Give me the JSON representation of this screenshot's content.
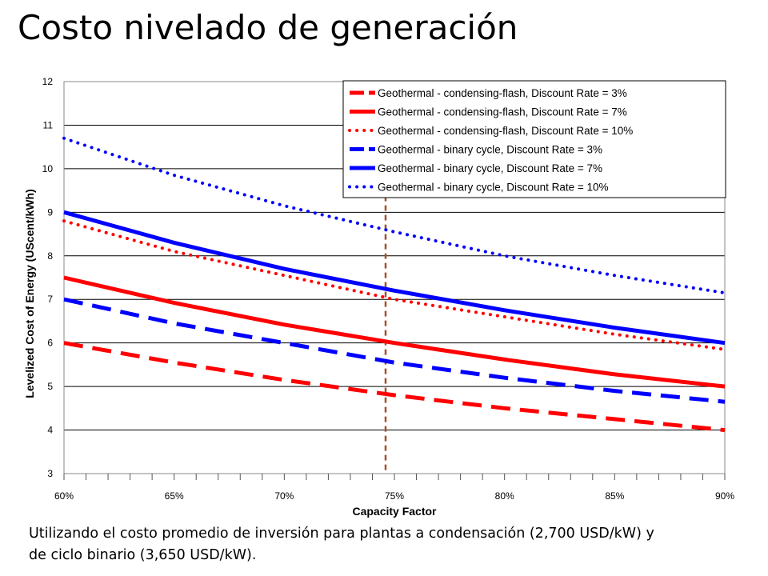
{
  "slide": {
    "title": "Costo nivelado de generación",
    "caption_line1": "Utilizando el costo promedio de inversión para plantas a condensación (2,700 USD/kW) y",
    "caption_line2": "de ciclo binario (3,650 USD/kW)."
  },
  "chart_data": {
    "type": "line",
    "title": "",
    "xlabel": "Capacity Factor",
    "ylabel": "Levelized Cost of Energy (UScent/kWh)",
    "xlim": [
      0.6,
      0.9
    ],
    "ylim": [
      3,
      12
    ],
    "x_ticks": [
      "60%",
      "65%",
      "70%",
      "75%",
      "80%",
      "85%",
      "90%"
    ],
    "y_ticks": [
      "3",
      "4",
      "5",
      "6",
      "7",
      "8",
      "9",
      "10",
      "11",
      "12"
    ],
    "grid": "horizontal",
    "legend_position": "top-right",
    "reference_line": {
      "x": 0.746,
      "color": "#a0522d",
      "style": "dashed"
    },
    "series": [
      {
        "name": "Geothermal - condensing-flash, Discount Rate = 3%",
        "color": "#ff0000",
        "style": "dashed",
        "x": [
          0.6,
          0.65,
          0.7,
          0.75,
          0.8,
          0.85,
          0.9
        ],
        "y": [
          6.0,
          5.55,
          5.15,
          4.8,
          4.5,
          4.25,
          4.0
        ]
      },
      {
        "name": "Geothermal - condensing-flash, Discount Rate = 7%",
        "color": "#ff0000",
        "style": "solid",
        "x": [
          0.6,
          0.65,
          0.7,
          0.75,
          0.8,
          0.85,
          0.9
        ],
        "y": [
          7.5,
          6.92,
          6.42,
          6.0,
          5.62,
          5.28,
          5.0
        ]
      },
      {
        "name": "Geothermal - condensing-flash, Discount Rate = 10%",
        "color": "#ff0000",
        "style": "dotted",
        "x": [
          0.6,
          0.65,
          0.7,
          0.75,
          0.8,
          0.85,
          0.9
        ],
        "y": [
          8.8,
          8.1,
          7.55,
          7.0,
          6.6,
          6.2,
          5.85
        ]
      },
      {
        "name": "Geothermal - binary cycle, Discount Rate = 3%",
        "color": "#0000ff",
        "style": "dashed",
        "x": [
          0.6,
          0.65,
          0.7,
          0.75,
          0.8,
          0.85,
          0.9
        ],
        "y": [
          7.0,
          6.45,
          6.0,
          5.55,
          5.2,
          4.9,
          4.65
        ]
      },
      {
        "name": "Geothermal - binary cycle, Discount Rate = 7%",
        "color": "#0000ff",
        "style": "solid",
        "x": [
          0.6,
          0.65,
          0.7,
          0.75,
          0.8,
          0.85,
          0.9
        ],
        "y": [
          9.0,
          8.3,
          7.7,
          7.2,
          6.75,
          6.35,
          6.0
        ]
      },
      {
        "name": "Geothermal - binary cycle, Discount Rate = 10%",
        "color": "#0000ff",
        "style": "dotted",
        "x": [
          0.6,
          0.65,
          0.7,
          0.75,
          0.8,
          0.85,
          0.9
        ],
        "y": [
          10.7,
          9.85,
          9.15,
          8.55,
          8.0,
          7.55,
          7.15
        ]
      }
    ]
  }
}
